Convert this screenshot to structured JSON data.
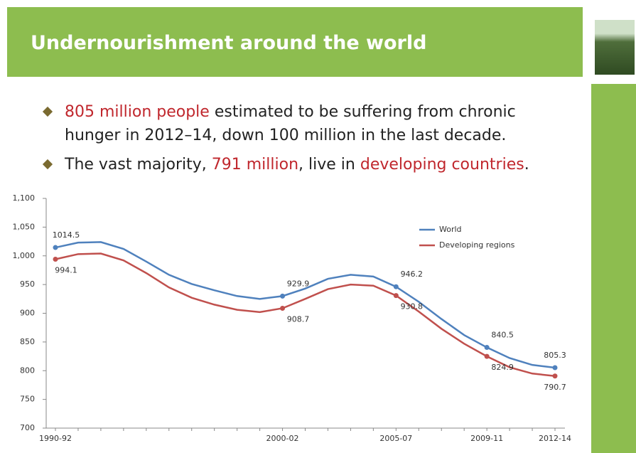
{
  "slide": {
    "title": "Undernourishment around the world",
    "bullets": [
      {
        "segments": [
          {
            "text": "805 million people",
            "highlight": true
          },
          {
            "text": " estimated to be suffering from chronic hunger in 2012–14, down 100 million in the last decade.",
            "highlight": false
          }
        ]
      },
      {
        "segments": [
          {
            "text": "The vast majority, ",
            "highlight": false
          },
          {
            "text": "791 million",
            "highlight": true
          },
          {
            "text": ", live in ",
            "highlight": false
          },
          {
            "text": "developing countries",
            "highlight": true
          },
          {
            "text": ".",
            "highlight": false
          }
        ]
      }
    ]
  },
  "chart_data": {
    "type": "line",
    "categories": [
      "1990-92",
      null,
      null,
      null,
      null,
      null,
      null,
      null,
      null,
      null,
      "2000-02",
      null,
      null,
      null,
      null,
      "2005-07",
      null,
      null,
      null,
      "2009-11",
      null,
      null,
      "2012-14"
    ],
    "series": [
      {
        "name": "World",
        "color": "#4f81bd",
        "values": [
          1014.5,
          1023,
          1024,
          1012,
          990,
          967,
          951,
          940,
          930,
          925,
          929.9,
          943,
          960,
          967,
          964,
          946.2,
          920,
          890,
          862,
          840.5,
          822,
          810,
          805.3
        ],
        "value_labels": [
          "1014.5",
          null,
          null,
          null,
          null,
          null,
          null,
          null,
          null,
          null,
          "929.9",
          null,
          null,
          null,
          null,
          "946.2",
          null,
          null,
          null,
          "840.5",
          null,
          null,
          "805.3"
        ]
      },
      {
        "name": "Developing regions",
        "color": "#c0504d",
        "values": [
          994.1,
          1003,
          1004,
          992,
          970,
          945,
          927,
          915,
          906,
          902,
          908.7,
          925,
          942,
          950,
          948,
          930.8,
          903,
          873,
          847,
          824.9,
          806,
          795,
          790.7
        ],
        "value_labels": [
          "994.1",
          null,
          null,
          null,
          null,
          null,
          null,
          null,
          null,
          null,
          "908.7",
          null,
          null,
          null,
          null,
          "930.8",
          null,
          null,
          null,
          "824.9",
          null,
          null,
          "790.7"
        ]
      }
    ],
    "ylim": [
      700,
      1100
    ],
    "yticks": [
      700,
      750,
      800,
      850,
      900,
      950,
      {
        "value": 1000,
        "label": "1,000"
      },
      {
        "value": 1050,
        "label": "1,050"
      },
      {
        "value": 1100,
        "label": "1,100"
      }
    ],
    "legend": "top-right"
  }
}
